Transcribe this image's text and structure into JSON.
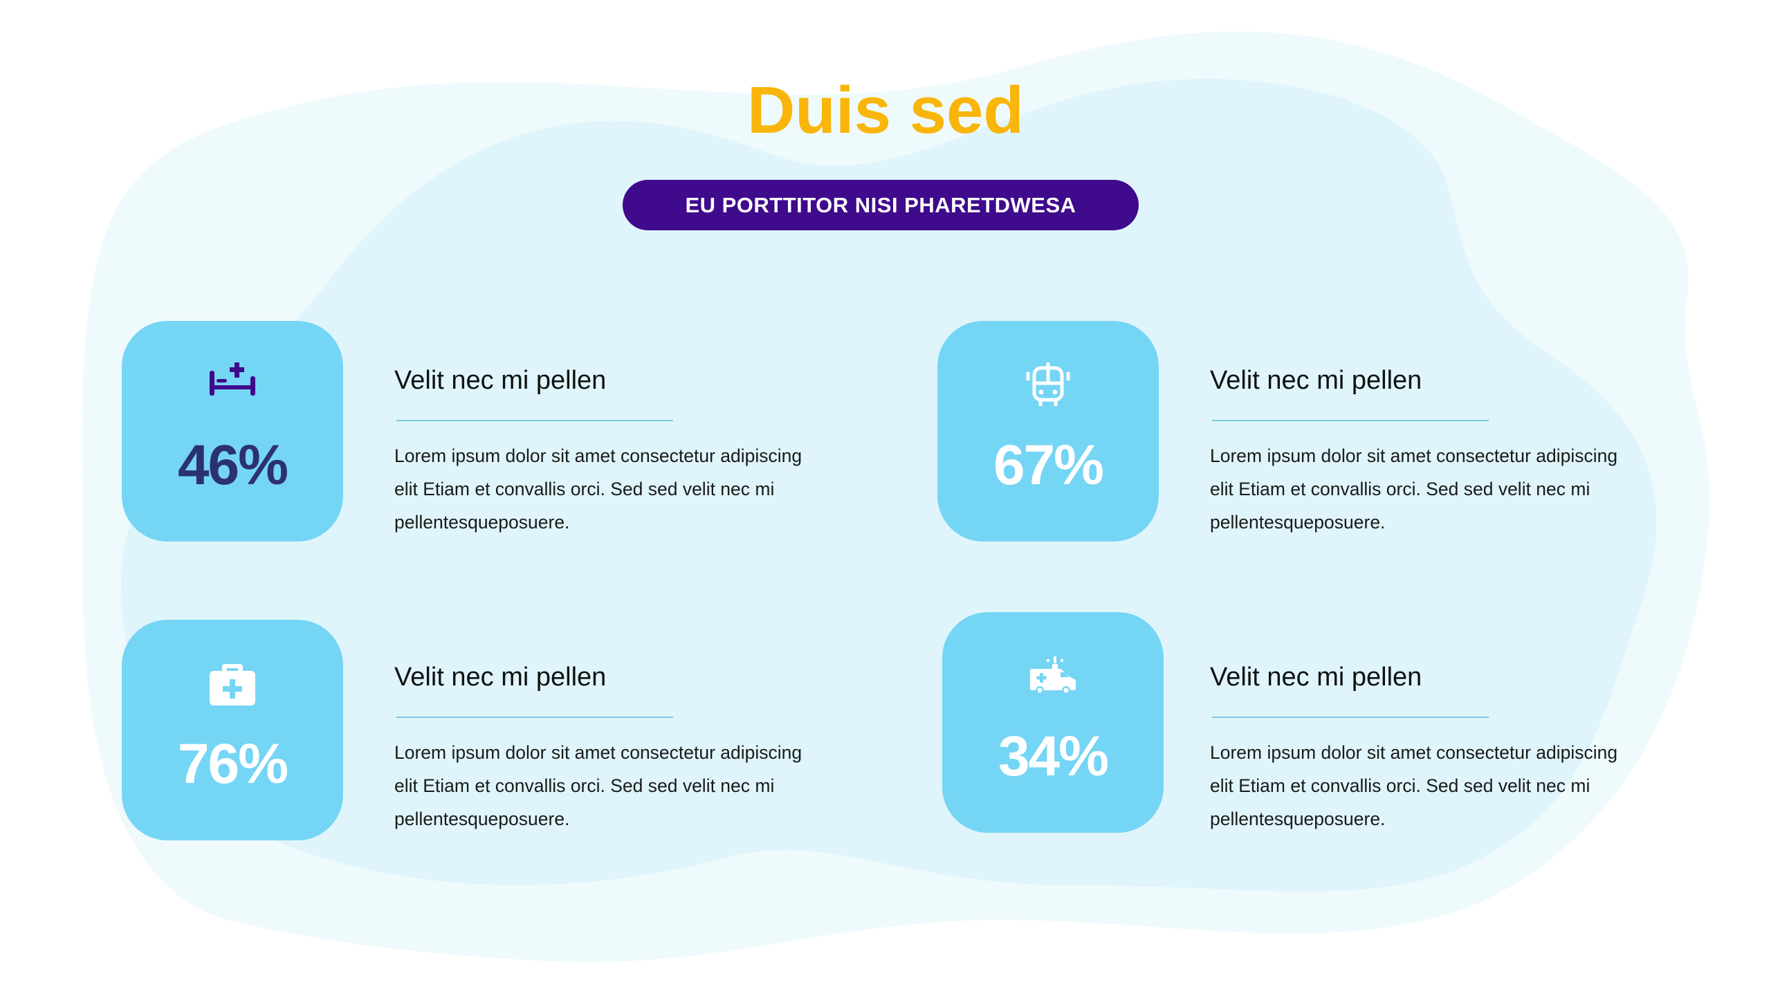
{
  "header": {
    "title": "Duis sed",
    "subtitle": "EU PORTTITOR NISI PHARETDWESA"
  },
  "colors": {
    "title": "#F9B50A",
    "pill": "#3F0A8C",
    "card": "#75D5F5",
    "blob_outer": "#EFFAFD",
    "blob_inner": "#DFF5FB",
    "percent_dark": "#2B3172"
  },
  "stats": [
    {
      "icon": "hospital-bed-icon",
      "percent": "46%",
      "heading": "Velit nec mi pellen",
      "body": "Lorem ipsum dolor sit amet consectetur adipiscing elit Etiam et convallis orci. Sed sed velit nec mi pellentesqueposuere."
    },
    {
      "icon": "bus-icon",
      "percent": "67%",
      "heading": "Velit nec mi pellen",
      "body": "Lorem ipsum dolor sit amet consectetur adipiscing elit Etiam et convallis orci. Sed sed velit nec mi pellentesqueposuere."
    },
    {
      "icon": "first-aid-kit-icon",
      "percent": "76%",
      "heading": "Velit nec mi pellen",
      "body": "Lorem ipsum dolor sit amet consectetur adipiscing elit Etiam et convallis orci. Sed sed velit nec mi pellentesqueposuere."
    },
    {
      "icon": "ambulance-icon",
      "percent": "34%",
      "heading": "Velit nec mi pellen",
      "body": "Lorem ipsum dolor sit amet consectetur adipiscing elit Etiam et convallis orci. Sed sed velit nec mi pellentesqueposuere."
    }
  ]
}
